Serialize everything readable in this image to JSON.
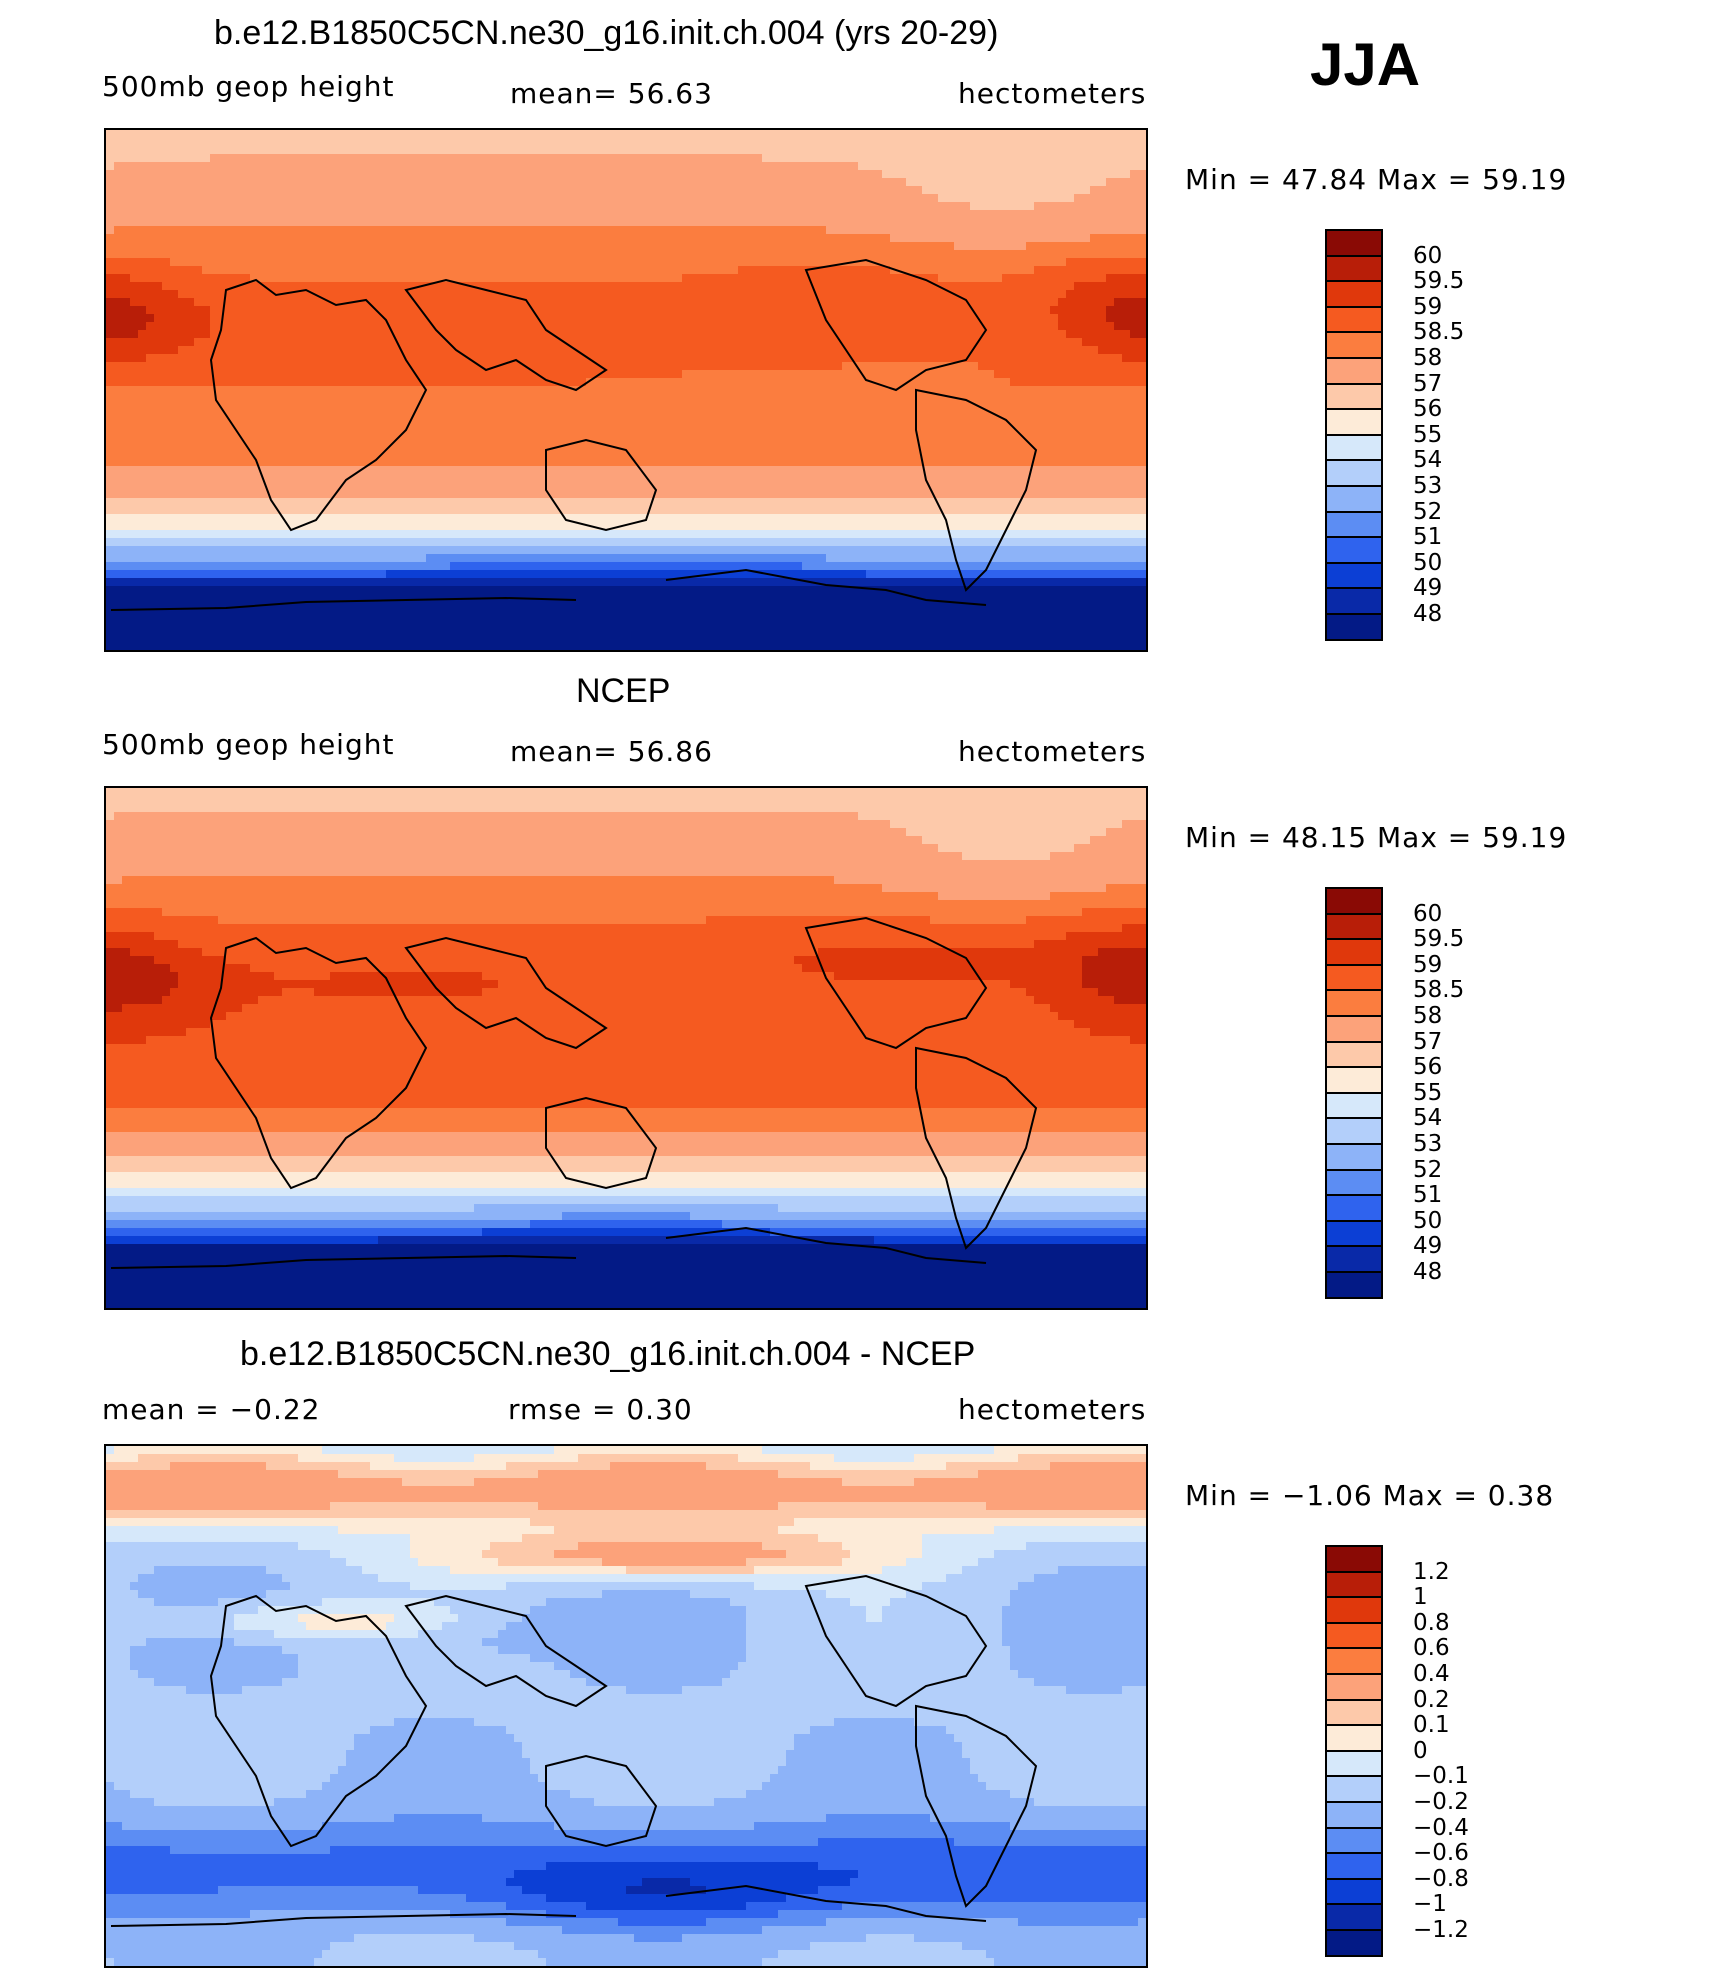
{
  "season": "JJA",
  "panels": [
    {
      "id": "model",
      "title": "b.e12.B1850C5CN.ne30_g16.init.ch.004 (yrs 20-29)",
      "left_label": "500mb geop height",
      "center_label": "mean= 56.63",
      "right_label": "hectometers",
      "min_max": "Min = 47.84 Max = 59.19",
      "colorbar": {
        "labels": [
          "60",
          "59.5",
          "59",
          "58.5",
          "58",
          "57",
          "56",
          "55",
          "54",
          "53",
          "52",
          "51",
          "50",
          "49",
          "48"
        ],
        "colors": [
          "#8a0a05",
          "#b81e08",
          "#e0380c",
          "#f55a20",
          "#fb7d3f",
          "#fca27a",
          "#fdc9aa",
          "#fdebd8",
          "#d6e8fa",
          "#b3cffa",
          "#8db3f8",
          "#5c8df3",
          "#2f63ee",
          "#0c3fd5",
          "#0929a8",
          "#031a86"
        ]
      },
      "field": "model"
    },
    {
      "id": "ncep",
      "title": "NCEP",
      "left_label": "500mb geop height",
      "center_label": "mean= 56.86",
      "right_label": "hectometers",
      "min_max": "Min = 48.15 Max = 59.19",
      "colorbar": {
        "labels": [
          "60",
          "59.5",
          "59",
          "58.5",
          "58",
          "57",
          "56",
          "55",
          "54",
          "53",
          "52",
          "51",
          "50",
          "49",
          "48"
        ],
        "colors": [
          "#8a0a05",
          "#b81e08",
          "#e0380c",
          "#f55a20",
          "#fb7d3f",
          "#fca27a",
          "#fdc9aa",
          "#fdebd8",
          "#d6e8fa",
          "#b3cffa",
          "#8db3f8",
          "#5c8df3",
          "#2f63ee",
          "#0c3fd5",
          "#0929a8",
          "#031a86"
        ]
      },
      "field": "ncep"
    },
    {
      "id": "diff",
      "title": "b.e12.B1850C5CN.ne30_g16.init.ch.004 - NCEP",
      "left_label": "mean = −0.22",
      "center_label": "rmse = 0.30",
      "right_label": "hectometers",
      "min_max": "Min = −1.06 Max = 0.38",
      "colorbar": {
        "labels": [
          "1.2",
          "1",
          "0.8",
          "0.6",
          "0.4",
          "0.2",
          "0.1",
          "0",
          "−0.1",
          "−0.2",
          "−0.4",
          "−0.6",
          "−0.8",
          "−1",
          "−1.2"
        ],
        "colors": [
          "#8a0a05",
          "#b81e08",
          "#e0380c",
          "#f55a20",
          "#fb7d3f",
          "#fca27a",
          "#fdc9aa",
          "#fdebd8",
          "#d6e8fa",
          "#b3cffa",
          "#8db3f8",
          "#5c8df3",
          "#2f63ee",
          "#0c3fd5",
          "#0929a8",
          "#031a86"
        ]
      },
      "field": "diff"
    }
  ]
}
